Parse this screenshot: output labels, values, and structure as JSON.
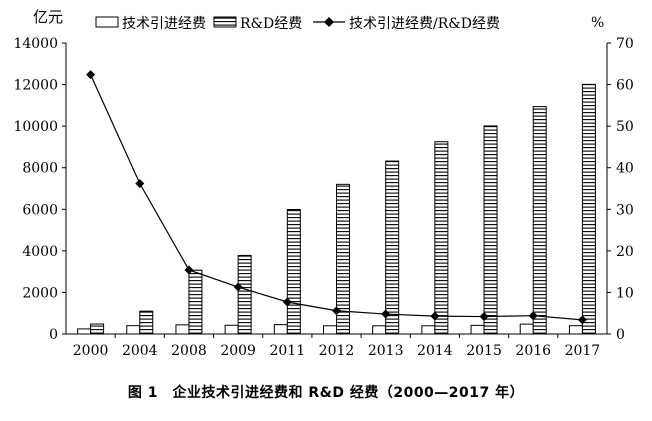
{
  "chart_data": {
    "type": "bar",
    "caption": "图 1　企业技术引进经费和 R&D 经费（2000—2017 年）",
    "y_left_unit": "亿元",
    "y_right_unit": "%",
    "categories": [
      "2000",
      "2004",
      "2008",
      "2009",
      "2011",
      "2012",
      "2013",
      "2014",
      "2015",
      "2016",
      "2017"
    ],
    "ylim_left": [
      0,
      14000
    ],
    "yticks_left": [
      "0",
      "2000",
      "4000",
      "6000",
      "8000",
      "10000",
      "12000",
      "14000"
    ],
    "ylim_right": [
      0,
      70
    ],
    "yticks_right": [
      "0",
      "10",
      "20",
      "30",
      "40",
      "50",
      "60",
      "70"
    ],
    "grid": false,
    "legend_position": "top",
    "series": [
      {
        "name": "技术引进经费",
        "kind": "bar",
        "pattern": "blank",
        "axis": "left",
        "values": [
          245,
          400,
          440,
          420,
          450,
          395,
          395,
          395,
          415,
          475,
          400
        ]
      },
      {
        "name": "R&D经费",
        "kind": "bar",
        "pattern": "horizontal-stripes",
        "axis": "left",
        "values": [
          480,
          1100,
          3070,
          3780,
          5990,
          7200,
          8320,
          9250,
          10010,
          10940,
          12010
        ]
      },
      {
        "name": "技术引进经费/R&D经费",
        "kind": "line",
        "marker": "diamond",
        "axis": "right",
        "values": [
          62.4,
          36.2,
          15.4,
          11.3,
          7.7,
          5.6,
          4.8,
          4.3,
          4.2,
          4.4,
          3.4
        ]
      }
    ]
  }
}
